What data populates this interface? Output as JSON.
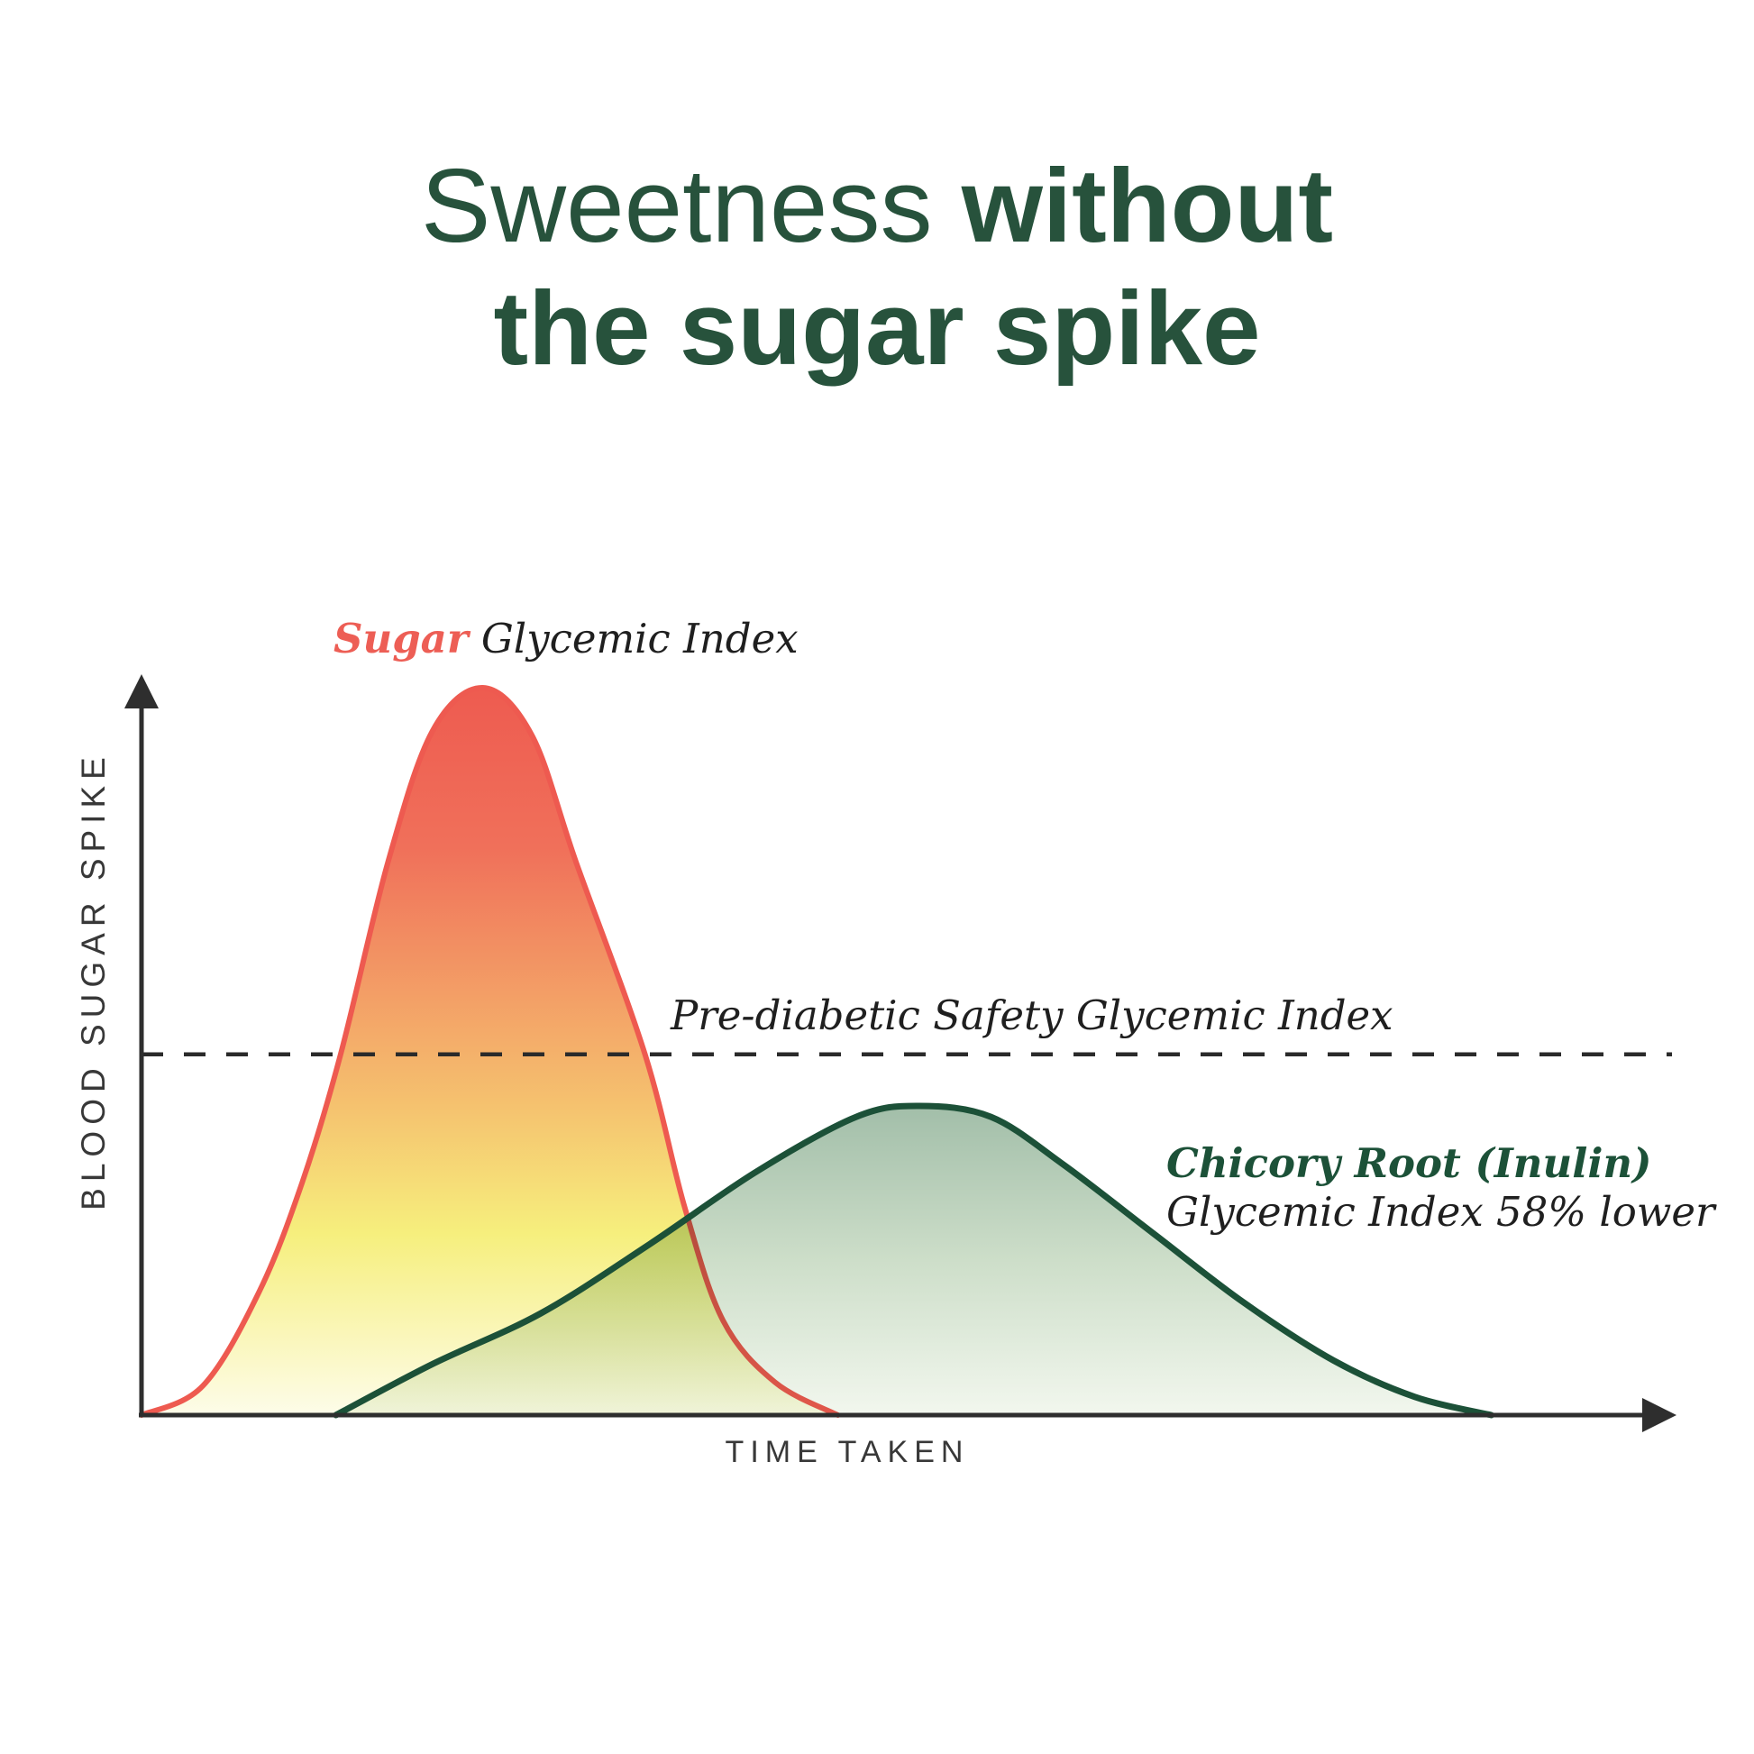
{
  "page": {
    "background": "#ffffff"
  },
  "title": {
    "line1_regular": "Sweetness",
    "line1_bold": "without",
    "line2_bold": "the sugar spike",
    "color": "#27523C"
  },
  "chart_data": {
    "type": "area",
    "title": "Sweetness without the sugar spike",
    "xlabel": "TIME TAKEN",
    "ylabel": "BLOOD SUGAR SPIKE",
    "grid": false,
    "axes_numeric_ticks": false,
    "x_units": "relative time, 0-100 (axis unlabeled)",
    "y_units": "relative blood sugar spike, 0-100 (axis unlabeled)",
    "axis_color": "#2E2E2E",
    "threshold_line": {
      "label": "Pre-diabetic Safety Glycemic Index",
      "value": 49.6,
      "style": "dashed",
      "color": "#2A2A2A"
    },
    "series": [
      {
        "name": "Sugar Glycemic Index",
        "label_prefix": "Sugar",
        "label_rest": " Glycemic Index",
        "stroke": "#EE5A50",
        "peak_value": 100,
        "peak_time": 22.3,
        "fill_gradient": [
          {
            "offset": 0.0,
            "color": "#EE5B50"
          },
          {
            "offset": 0.22,
            "color": "#F0705A"
          },
          {
            "offset": 0.42,
            "color": "#F39E66"
          },
          {
            "offset": 0.58,
            "color": "#F5C36F"
          },
          {
            "offset": 0.75,
            "color": "#F6EF7D"
          },
          {
            "offset": 1.0,
            "color": "#FDFCE9"
          }
        ],
        "points": [
          [
            0,
            0
          ],
          [
            4,
            4
          ],
          [
            7.7,
            17
          ],
          [
            10.5,
            32
          ],
          [
            13,
            49.5
          ],
          [
            16.1,
            76
          ],
          [
            19,
            94
          ],
          [
            22.3,
            100
          ],
          [
            25.5,
            93.5
          ],
          [
            28.4,
            76
          ],
          [
            32.9,
            49.6
          ],
          [
            35.5,
            28.5
          ],
          [
            38,
            13
          ],
          [
            41.4,
            4.5
          ],
          [
            45.5,
            0
          ]
        ]
      },
      {
        "name": "Chicory Root (Inulin) Glycemic Index 58% lower",
        "label_line1": "Chicory Root (Inulin)",
        "label_line2": "Glycemic Index 58% lower",
        "gi_vs_sugar": "58% lower",
        "stroke": "#1C5138",
        "peak_value": 42.5,
        "peak_time": 50.8,
        "fill_gradient": [
          {
            "offset": 0.0,
            "color": "#A2BEA9"
          },
          {
            "offset": 0.5,
            "color": "#CDDEC9"
          },
          {
            "offset": 1.0,
            "color": "#F2F7EE"
          }
        ],
        "points": [
          [
            12.7,
            0
          ],
          [
            19,
            7
          ],
          [
            26.1,
            14
          ],
          [
            33.2,
            23.5
          ],
          [
            40.2,
            33.5
          ],
          [
            46.7,
            41
          ],
          [
            50.8,
            42.5
          ],
          [
            55.5,
            41
          ],
          [
            60.2,
            34.5
          ],
          [
            66.1,
            25
          ],
          [
            72,
            15.5
          ],
          [
            77.9,
            7.5
          ],
          [
            83.2,
            2.5
          ],
          [
            88.2,
            0
          ]
        ]
      }
    ]
  }
}
